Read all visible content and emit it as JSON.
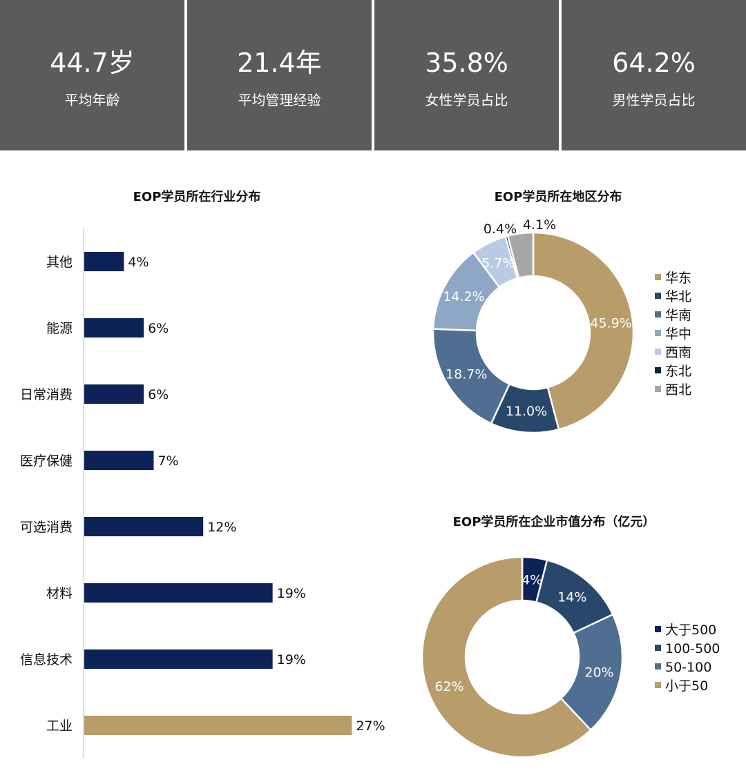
{
  "stats": [
    {
      "value": "44.7岁",
      "label": "平均年龄"
    },
    {
      "value": "21.4年",
      "label": "平均管理经验"
    },
    {
      "value": "35.8%",
      "label": "女性学员占比"
    },
    {
      "value": "64.2%",
      "label": "男性学员占比"
    }
  ],
  "colors": {
    "navy": "#0d2257",
    "gold": "#b89c6a",
    "stat_bg": "#5b5b5b"
  },
  "chart_data": [
    {
      "type": "bar",
      "orientation": "horizontal",
      "title": "EOP学员所在行业分布",
      "categories": [
        "其他",
        "能源",
        "日常消费",
        "医疗保健",
        "可选消费",
        "材料",
        "信息技术",
        "工业"
      ],
      "values": [
        4,
        6,
        6,
        7,
        12,
        19,
        19,
        27
      ],
      "labels": [
        "4%",
        "6%",
        "6%",
        "7%",
        "12%",
        "19%",
        "19%",
        "27%"
      ],
      "bar_colors": [
        "#0d2257",
        "#0d2257",
        "#0d2257",
        "#0d2257",
        "#0d2257",
        "#0d2257",
        "#0d2257",
        "#b89c6a"
      ],
      "unit": "%"
    },
    {
      "type": "pie",
      "style": "donut",
      "title": "EOP学员所在地区分布",
      "categories": [
        "华东",
        "华北",
        "华南",
        "华中",
        "西南",
        "东北",
        "西北"
      ],
      "values": [
        45.9,
        11.0,
        18.7,
        14.2,
        5.7,
        0.4,
        4.1
      ],
      "labels": [
        "45.9%",
        "11.0%",
        "18.7%",
        "14.2%",
        "5.7%",
        "0.4%",
        "4.1%"
      ],
      "colors": [
        "#b89c6a",
        "#27486b",
        "#506e92",
        "#8fa7c6",
        "#b9cbe4",
        "#0d1e48",
        "#a6a6a6"
      ],
      "legend": "right"
    },
    {
      "type": "pie",
      "style": "donut",
      "title": "EOP学员所在企业市值分布（亿元）",
      "categories": [
        "大于500",
        "100-500",
        "50-100",
        "小于50"
      ],
      "values": [
        4,
        14,
        20,
        62
      ],
      "labels": [
        "4%",
        "14%",
        "20%",
        "62%"
      ],
      "colors": [
        "#0d2257",
        "#27486b",
        "#506e92",
        "#b89c6a"
      ],
      "legend": "right"
    }
  ]
}
